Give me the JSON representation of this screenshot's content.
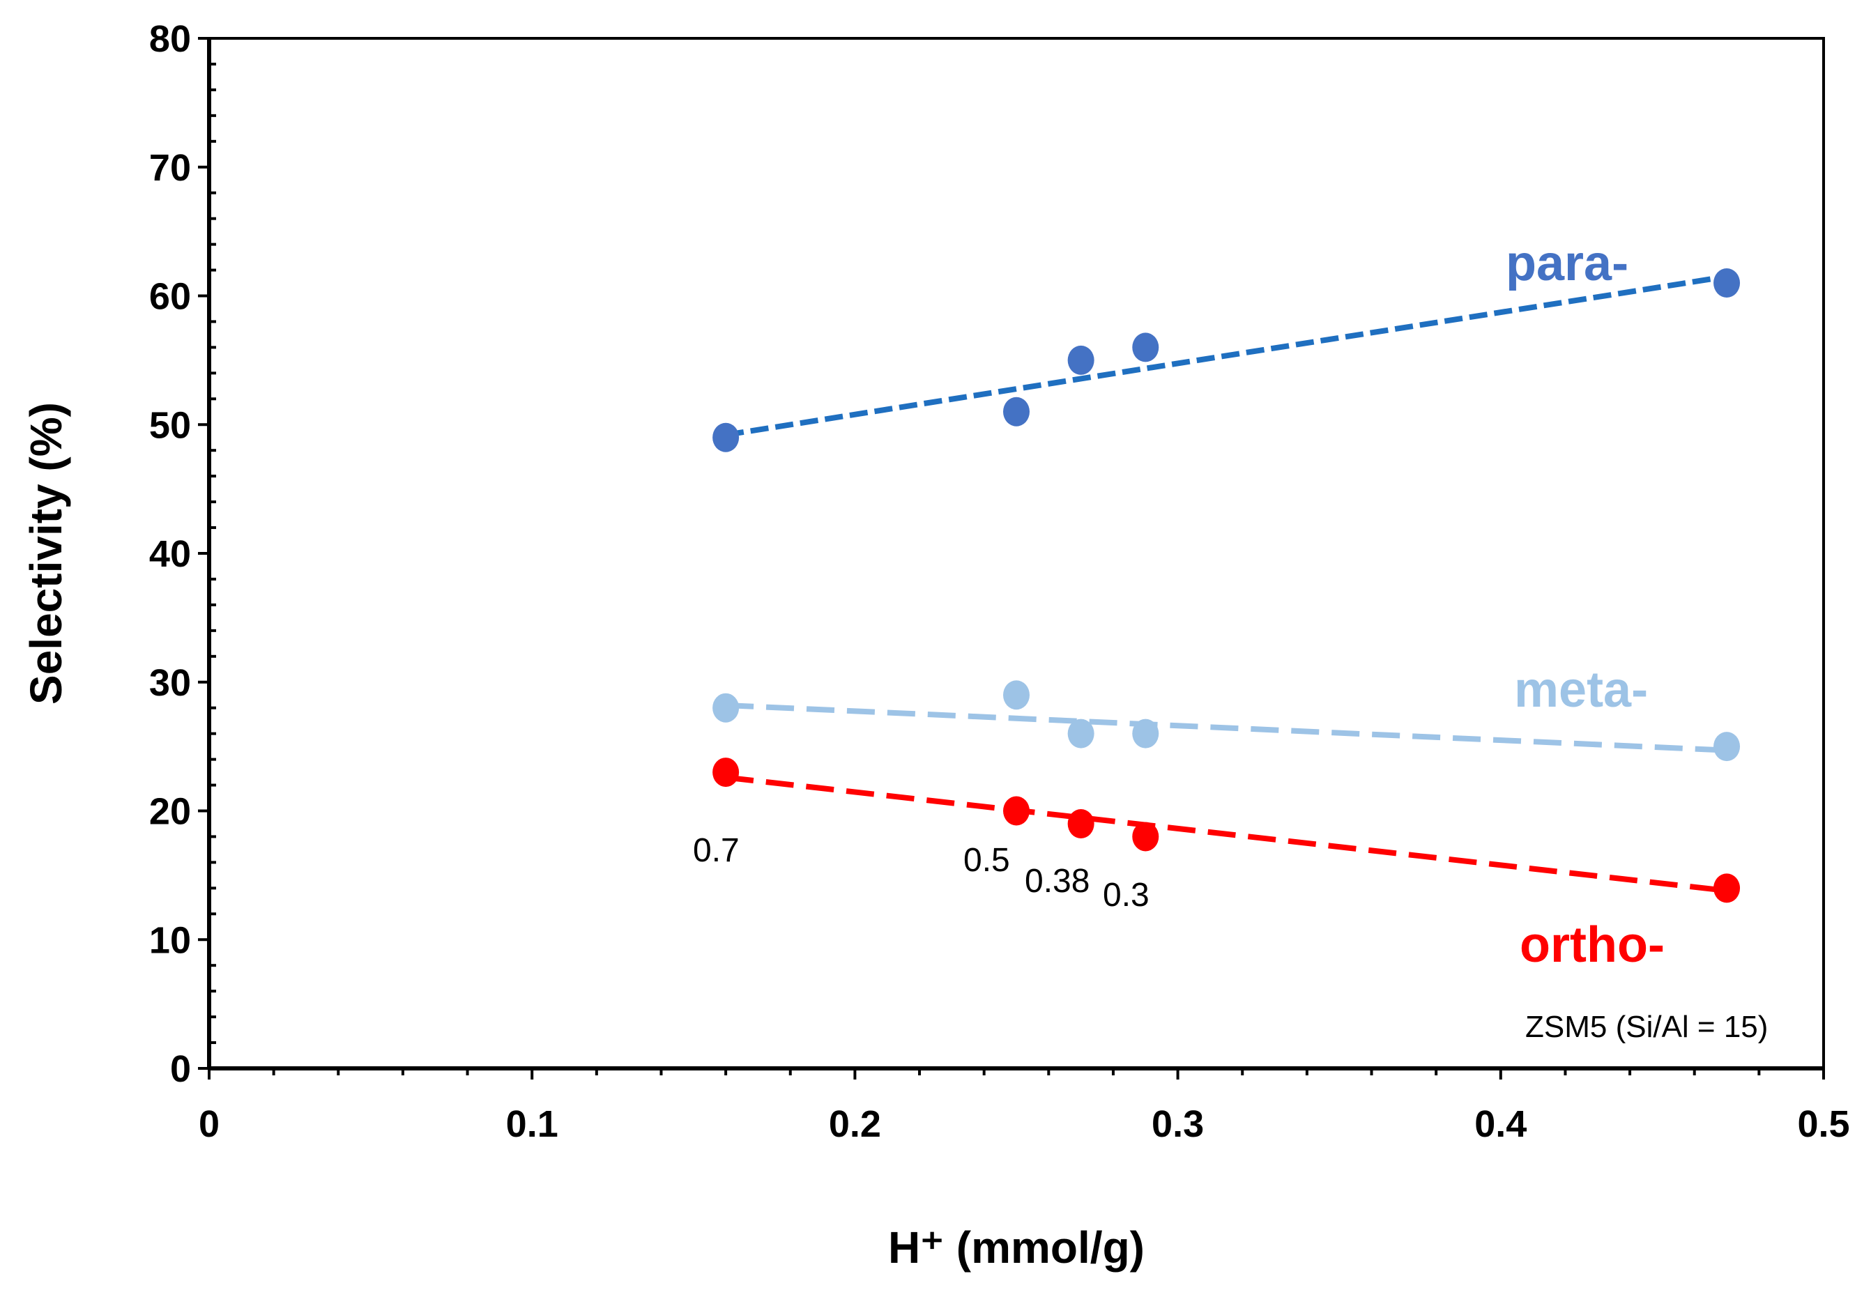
{
  "chart_data": {
    "type": "scatter",
    "title": "",
    "xlabel": "H⁺ (mmol/g)",
    "ylabel": "Selectivity (%)",
    "xlim": [
      0,
      0.5
    ],
    "ylim": [
      0,
      80
    ],
    "x_ticks": [
      "0",
      "0.1",
      "0.2",
      "0.3",
      "0.4",
      "0.5"
    ],
    "y_ticks": [
      "0",
      "10",
      "20",
      "30",
      "40",
      "50",
      "60",
      "70",
      "80"
    ],
    "grid": false,
    "series": [
      {
        "name": "para-",
        "color": "#4472c4",
        "trend_color": "#1f6fc0",
        "x": [
          0.16,
          0.25,
          0.27,
          0.29,
          0.47
        ],
        "y": [
          49,
          51,
          55,
          56,
          61
        ],
        "trendline": {
          "x": [
            0.16,
            0.47
          ],
          "y": [
            49.2,
            61.5
          ]
        }
      },
      {
        "name": "meta-",
        "color": "#9dc3e6",
        "trend_color": "#9dc3e6",
        "x": [
          0.16,
          0.25,
          0.27,
          0.29,
          0.47
        ],
        "y": [
          28,
          29,
          26,
          26,
          25
        ],
        "trendline": {
          "x": [
            0.16,
            0.47
          ],
          "y": [
            28.2,
            24.7
          ]
        }
      },
      {
        "name": "ortho-",
        "color": "#ff0000",
        "trend_color": "#ff0000",
        "x": [
          0.16,
          0.25,
          0.27,
          0.29,
          0.47
        ],
        "y": [
          23,
          20,
          19,
          18,
          14
        ],
        "trendline": {
          "x": [
            0.16,
            0.47
          ],
          "y": [
            22.6,
            13.8
          ]
        }
      }
    ],
    "point_annotations": [
      {
        "text": "0.7",
        "x": 0.16
      },
      {
        "text": "0.5",
        "x": 0.25
      },
      {
        "text": "0.38",
        "x": 0.27
      },
      {
        "text": "0.3",
        "x": 0.29
      }
    ],
    "note": "ZSM5 (Si/Al = 15)"
  }
}
